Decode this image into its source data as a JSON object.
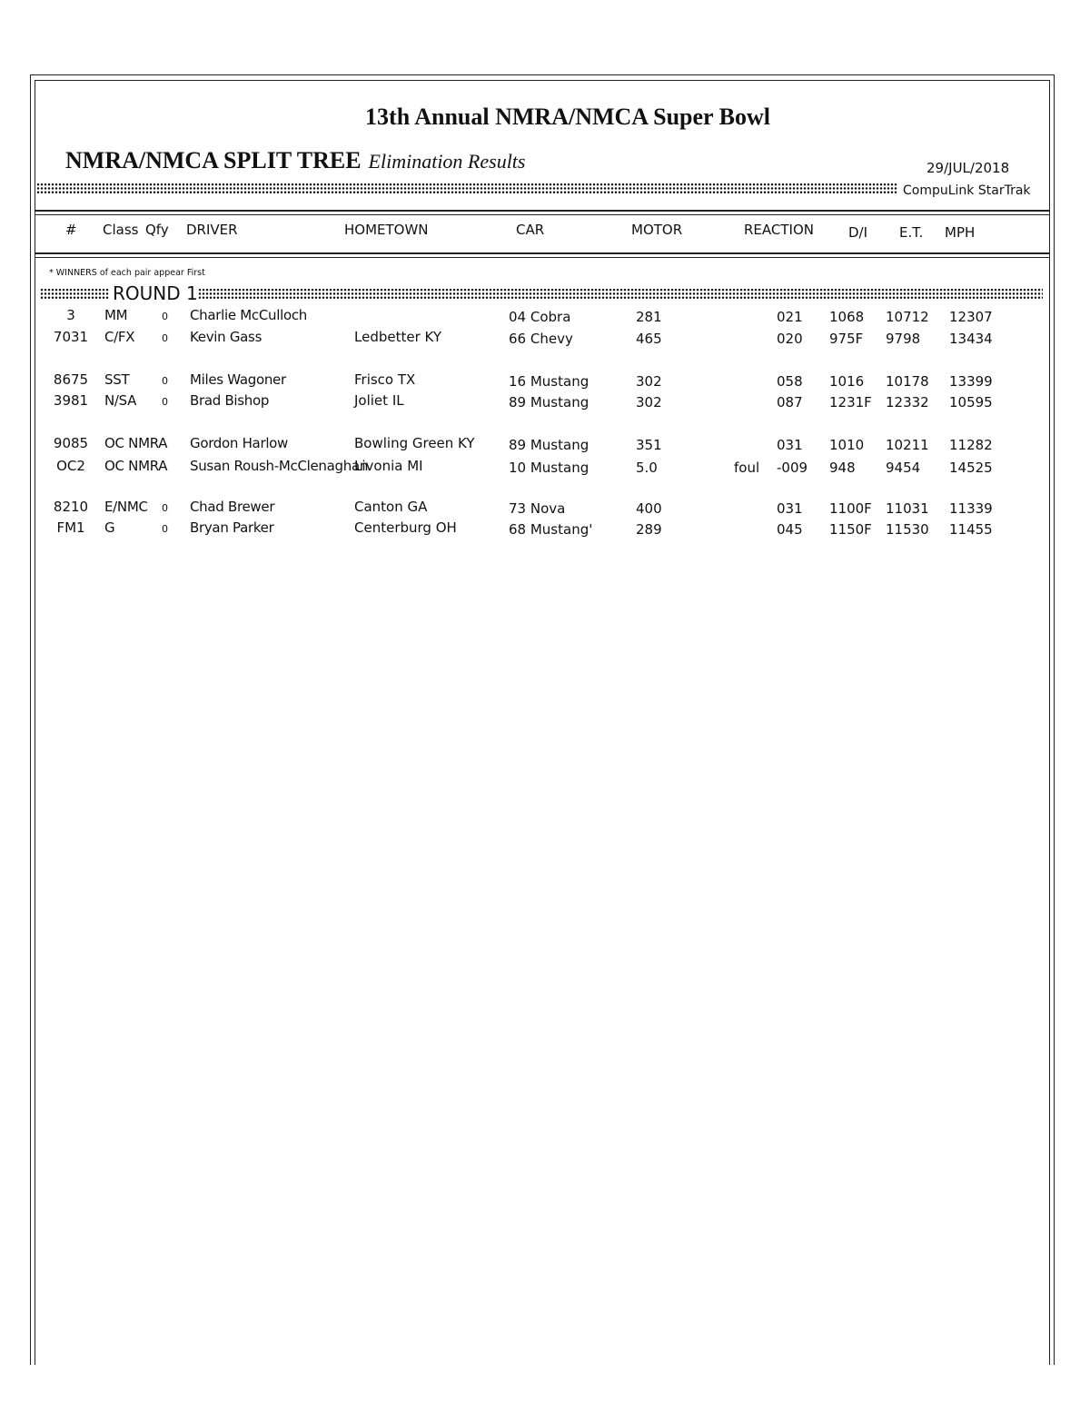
{
  "header": {
    "title": "13th Annual NMRA/NMCA Super Bowl",
    "subtitle_bold": "NMRA/NMCA SPLIT TREE",
    "subtitle_italic": "Elimination Results",
    "date": "29/JUL/2018",
    "brand": "CompuLink  StarTrak"
  },
  "columns": [
    "#",
    "Class",
    "Qfy",
    "DRIVER",
    "HOMETOWN",
    "CAR",
    "MOTOR",
    "REACTION",
    "D/I",
    "E.T.",
    "MPH"
  ],
  "note": "* WINNERS of each pair appear First",
  "round_label": "ROUND 1",
  "rows": [
    {
      "num": "3",
      "class": "MM",
      "qfy": "0",
      "driver": "Charlie McCulloch",
      "hometown": "",
      "car": "04 Cobra",
      "motor": "281",
      "foul": "",
      "reaction": "021",
      "di": "1068",
      "et": "10712",
      "mph": "12307"
    },
    {
      "num": "7031",
      "class": "C/FX",
      "qfy": "0",
      "driver": "Kevin Gass",
      "hometown": "Ledbetter KY",
      "car": "66 Chevy",
      "motor": "465",
      "foul": "",
      "reaction": "020",
      "di": "975F",
      "et": "9798",
      "mph": "13434"
    },
    {
      "num": "8675",
      "class": "SST",
      "qfy": "0",
      "driver": "Miles Wagoner",
      "hometown": "Frisco TX",
      "car": "16 Mustang",
      "motor": "302",
      "foul": "",
      "reaction": "058",
      "di": "1016",
      "et": "10178",
      "mph": "13399"
    },
    {
      "num": "3981",
      "class": "N/SA",
      "qfy": "0",
      "driver": "Brad Bishop",
      "hometown": "Joliet IL",
      "car": "89 Mustang",
      "motor": "302",
      "foul": "",
      "reaction": "087",
      "di": "1231F",
      "et": "12332",
      "mph": "10595"
    },
    {
      "num": "9085",
      "class": "OC NMRA",
      "qfy": "",
      "driver": "Gordon Harlow",
      "hometown": "Bowling Green KY",
      "car": "89 Mustang",
      "motor": "351",
      "foul": "",
      "reaction": "031",
      "di": "1010",
      "et": "10211",
      "mph": "11282"
    },
    {
      "num": "OC2",
      "class": "OC NMRA",
      "qfy": "",
      "driver": "Susan Roush-McClenaghan",
      "hometown": "Livonia MI",
      "car": "10 Mustang",
      "motor": "5.0",
      "foul": "foul",
      "reaction": "-009",
      "di": "948",
      "et": "9454",
      "mph": "14525"
    },
    {
      "num": "8210",
      "class": "E/NMC",
      "qfy": "0",
      "driver": "Chad Brewer",
      "hometown": "Canton GA",
      "car": "73 Nova",
      "motor": "400",
      "foul": "",
      "reaction": "031",
      "di": "1100F",
      "et": "11031",
      "mph": "11339"
    },
    {
      "num": "FM1",
      "class": "G",
      "qfy": "0",
      "driver": "Bryan Parker",
      "hometown": "Centerburg OH",
      "car": "68 Mustang'",
      "motor": "289",
      "foul": "",
      "reaction": "045",
      "di": "1150F",
      "et": "11530",
      "mph": "11455"
    }
  ]
}
